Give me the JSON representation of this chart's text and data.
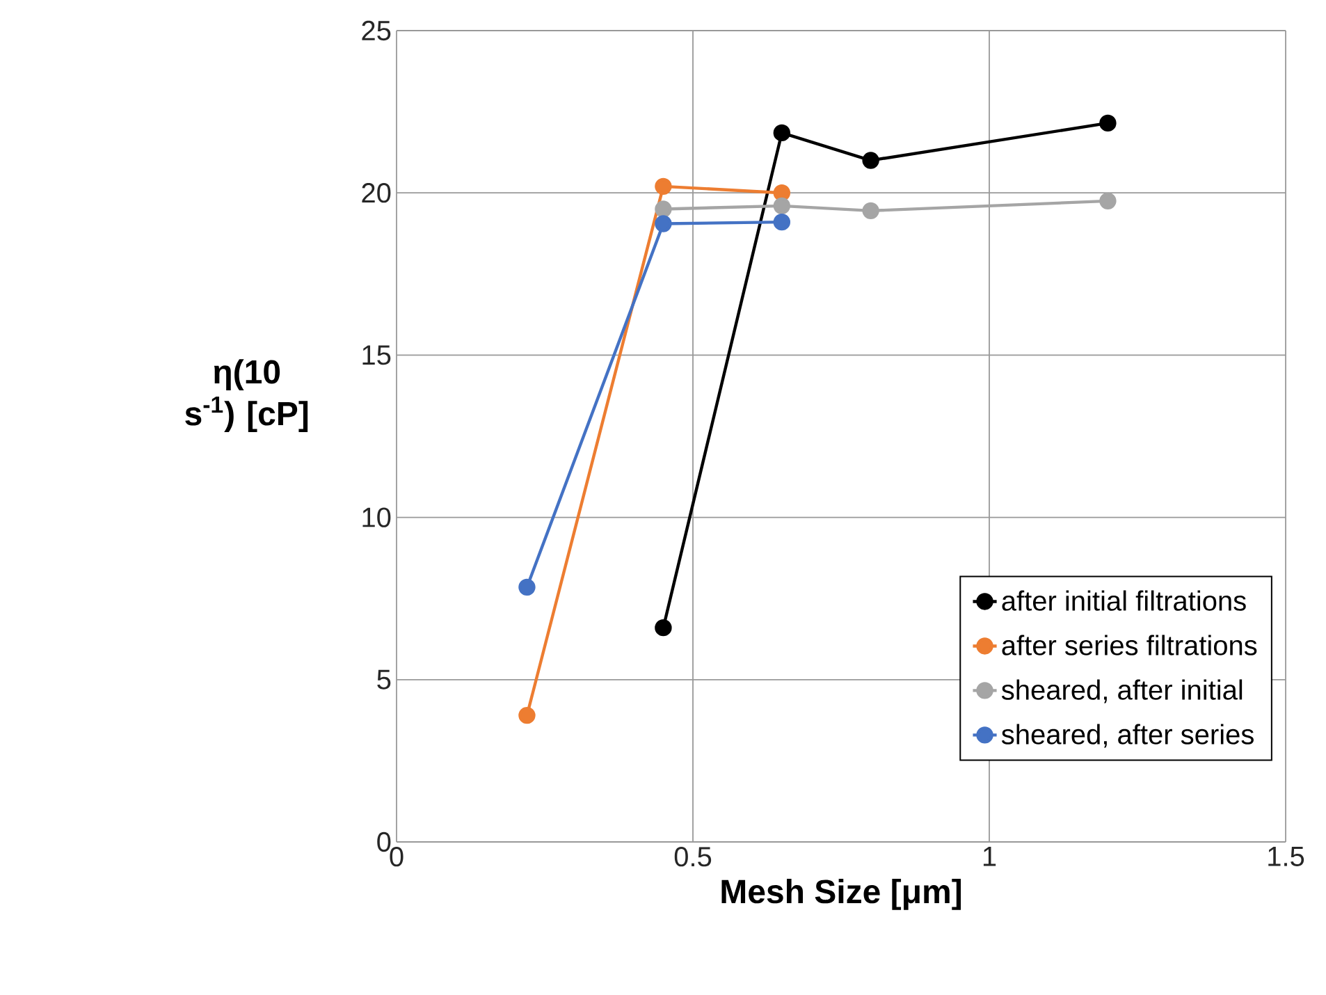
{
  "chart_data": {
    "type": "line",
    "xlabel": "Mesh Size [μm]",
    "ylabel": "η(10 s$^{-1}$) [cP]",
    "xlim": [
      0,
      1.5
    ],
    "xticks": [
      0,
      0.5,
      1,
      1.5
    ],
    "ylim": [
      0,
      25
    ],
    "yticks": [
      0,
      5,
      10,
      15,
      20,
      25
    ],
    "grid": true,
    "legend": "bottom right",
    "marker": "circle",
    "line_style": "solid",
    "series": [
      {
        "name": "after initial filtrations",
        "color": "#000000",
        "x": [
          0.45,
          0.65,
          0.8,
          1.2
        ],
        "values": [
          6.6,
          21.85,
          21.0,
          22.15
        ]
      },
      {
        "name": "after series filtrations",
        "color": "#ed7d31",
        "x": [
          0.22,
          0.45,
          0.65
        ],
        "values": [
          3.9,
          20.2,
          20.0
        ]
      },
      {
        "name": "sheared, after initial",
        "color": "#a5a5a5",
        "x": [
          0.45,
          0.65,
          0.8,
          1.2
        ],
        "values": [
          19.5,
          19.6,
          19.45,
          19.75
        ]
      },
      {
        "name": "sheared, after series",
        "color": "#4472c4",
        "x": [
          0.22,
          0.45,
          0.65
        ],
        "values": [
          7.85,
          19.05,
          19.1
        ]
      }
    ]
  }
}
